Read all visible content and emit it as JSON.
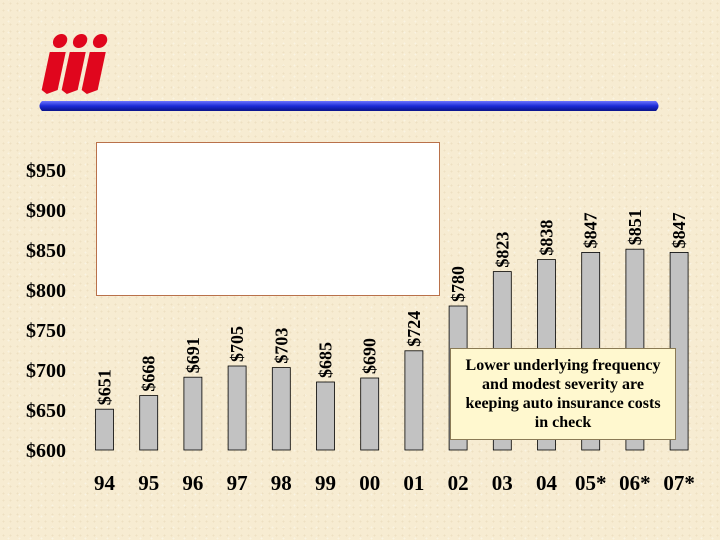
{
  "logo": {
    "text": "iii",
    "color": "#e0061d"
  },
  "divider": {
    "color": "#1b2bd6"
  },
  "callout": {
    "text": "Lower underlying frequency and modest severity are keeping auto insurance costs in check"
  },
  "colors": {
    "bar_fill": "#c2c2c2",
    "bar_stroke": "#000000",
    "text": "#000000"
  },
  "chart_data": {
    "type": "bar",
    "title": "",
    "xlabel": "",
    "ylabel": "",
    "categories": [
      "94",
      "95",
      "96",
      "97",
      "98",
      "99",
      "00",
      "01",
      "02",
      "03",
      "04",
      "05*",
      "06*",
      "07*"
    ],
    "values": [
      651,
      668,
      691,
      705,
      703,
      685,
      690,
      724,
      780,
      823,
      838,
      847,
      851,
      847
    ],
    "value_labels": [
      "$651",
      "$668",
      "$691",
      "$705",
      "$703",
      "$685",
      "$690",
      "$724",
      "$780",
      "$823",
      "$838",
      "$847",
      "$851",
      "$847"
    ],
    "y_ticks": [
      600,
      650,
      700,
      750,
      800,
      850,
      900,
      950
    ],
    "y_tick_labels": [
      "$600",
      "$650",
      "$700",
      "$750",
      "$800",
      "$850",
      "$900",
      "$950"
    ],
    "ylim": [
      600,
      950
    ],
    "grid": false,
    "legend": "none"
  }
}
